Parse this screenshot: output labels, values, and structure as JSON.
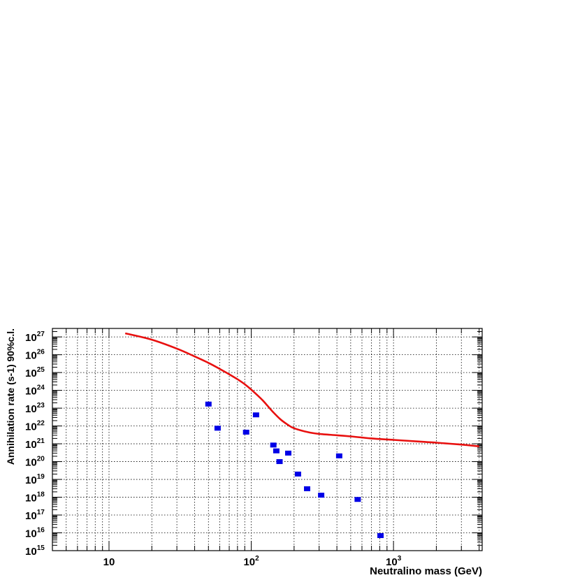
{
  "chart_data": {
    "type": "scatter",
    "title": "",
    "xlabel": "Neutralino mass (GeV)",
    "ylabel": "Annihilation rate (s-1) 90%c.l.",
    "x_scale": "log",
    "y_scale": "log",
    "xlim": [
      4,
      4200
    ],
    "ylim": [
      1000000000000000.0,
      3e+27
    ],
    "grid": true,
    "legend": "none",
    "x_ticks": [
      {
        "value": 10,
        "label": "10",
        "exp": ""
      },
      {
        "value": 100,
        "label": "10",
        "exp": "2"
      },
      {
        "value": 1000,
        "label": "10",
        "exp": "3"
      }
    ],
    "y_ticks": [
      {
        "value": 1000000000000000.0,
        "label": "10",
        "exp": "15"
      },
      {
        "value": 1e+16,
        "label": "10",
        "exp": "16"
      },
      {
        "value": 1e+17,
        "label": "10",
        "exp": "17"
      },
      {
        "value": 1e+18,
        "label": "10",
        "exp": "18"
      },
      {
        "value": 1e+19,
        "label": "10",
        "exp": "19"
      },
      {
        "value": 1e+20,
        "label": "10",
        "exp": "20"
      },
      {
        "value": 1e+21,
        "label": "10",
        "exp": "21"
      },
      {
        "value": 1e+22,
        "label": "10",
        "exp": "22"
      },
      {
        "value": 1e+23,
        "label": "10",
        "exp": "23"
      },
      {
        "value": 1e+24,
        "label": "10",
        "exp": "24"
      },
      {
        "value": 1e+25,
        "label": "10",
        "exp": "25"
      },
      {
        "value": 1e+26,
        "label": "10",
        "exp": "26"
      },
      {
        "value": 1e+27,
        "label": "10",
        "exp": "27"
      }
    ],
    "series": [
      {
        "type": "line",
        "color": "#e8100f",
        "x": [
          13,
          20,
          30,
          40,
          50,
          60,
          70,
          80,
          90,
          100,
          120,
          140,
          160,
          180,
          200,
          250,
          300,
          400,
          500,
          700,
          1000,
          1500,
          2000,
          3000,
          4000
        ],
        "y": [
          1.6e+27,
          7e+26,
          2.2e+26,
          8e+25,
          3.5e+25,
          1.6e+25,
          8e+24,
          4.2e+24,
          2.2e+24,
          1.1e+24,
          2.8e+23,
          7e+22,
          2.4e+22,
          1.2e+22,
          7.5e+21,
          4.5e+21,
          3.6e+21,
          3e+21,
          2.6e+21,
          2e+21,
          1.65e+21,
          1.35e+21,
          1.15e+21,
          9e+20,
          7.2e+20
        ]
      },
      {
        "type": "scatter",
        "color": "#0000e6",
        "x": [
          50,
          58,
          92,
          108,
          143,
          150,
          158,
          182,
          213,
          247,
          310,
          415,
          560,
          810
        ],
        "y": [
          1.7e+23,
          7.5e+21,
          4.5e+21,
          4.2e+22,
          8.5e+20,
          4e+20,
          1e+20,
          3e+20,
          2e+19,
          3e+18,
          1.3e+18,
          2.1e+20,
          7.5e+17,
          7000000000000000.0
        ]
      }
    ]
  }
}
